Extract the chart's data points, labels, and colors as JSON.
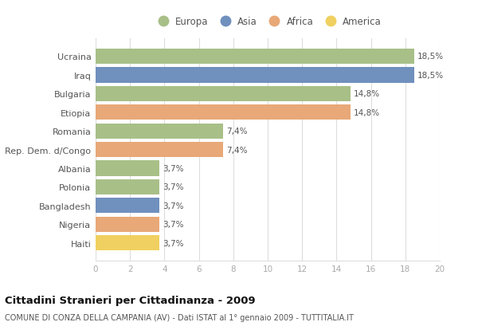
{
  "categories": [
    "Ucraina",
    "Iraq",
    "Bulgaria",
    "Etiopia",
    "Romania",
    "Rep. Dem. d/Congo",
    "Albania",
    "Polonia",
    "Bangladesh",
    "Nigeria",
    "Haiti"
  ],
  "values": [
    18.5,
    18.5,
    14.8,
    14.8,
    7.4,
    7.4,
    3.7,
    3.7,
    3.7,
    3.7,
    3.7
  ],
  "labels": [
    "18,5%",
    "18,5%",
    "14,8%",
    "14,8%",
    "7,4%",
    "7,4%",
    "3,7%",
    "3,7%",
    "3,7%",
    "3,7%",
    "3,7%"
  ],
  "continents": [
    "Europa",
    "Asia",
    "Europa",
    "Africa",
    "Europa",
    "Africa",
    "Europa",
    "Europa",
    "Asia",
    "Africa",
    "America"
  ],
  "colors": {
    "Europa": "#a8bf88",
    "Asia": "#7090be",
    "Africa": "#e8a878",
    "America": "#f0d060"
  },
  "legend_order": [
    "Europa",
    "Asia",
    "Africa",
    "America"
  ],
  "title": "Cittadini Stranieri per Cittadinanza - 2009",
  "subtitle": "COMUNE DI CONZA DELLA CAMPANIA (AV) - Dati ISTAT al 1° gennaio 2009 - TUTTITALIA.IT",
  "xlim": [
    0,
    20
  ],
  "xticks": [
    0,
    2,
    4,
    6,
    8,
    10,
    12,
    14,
    16,
    18,
    20
  ],
  "background_color": "#ffffff",
  "bar_background": "#ffffff",
  "grid_color": "#dddddd",
  "label_color": "#555555",
  "tick_color": "#aaaaaa"
}
